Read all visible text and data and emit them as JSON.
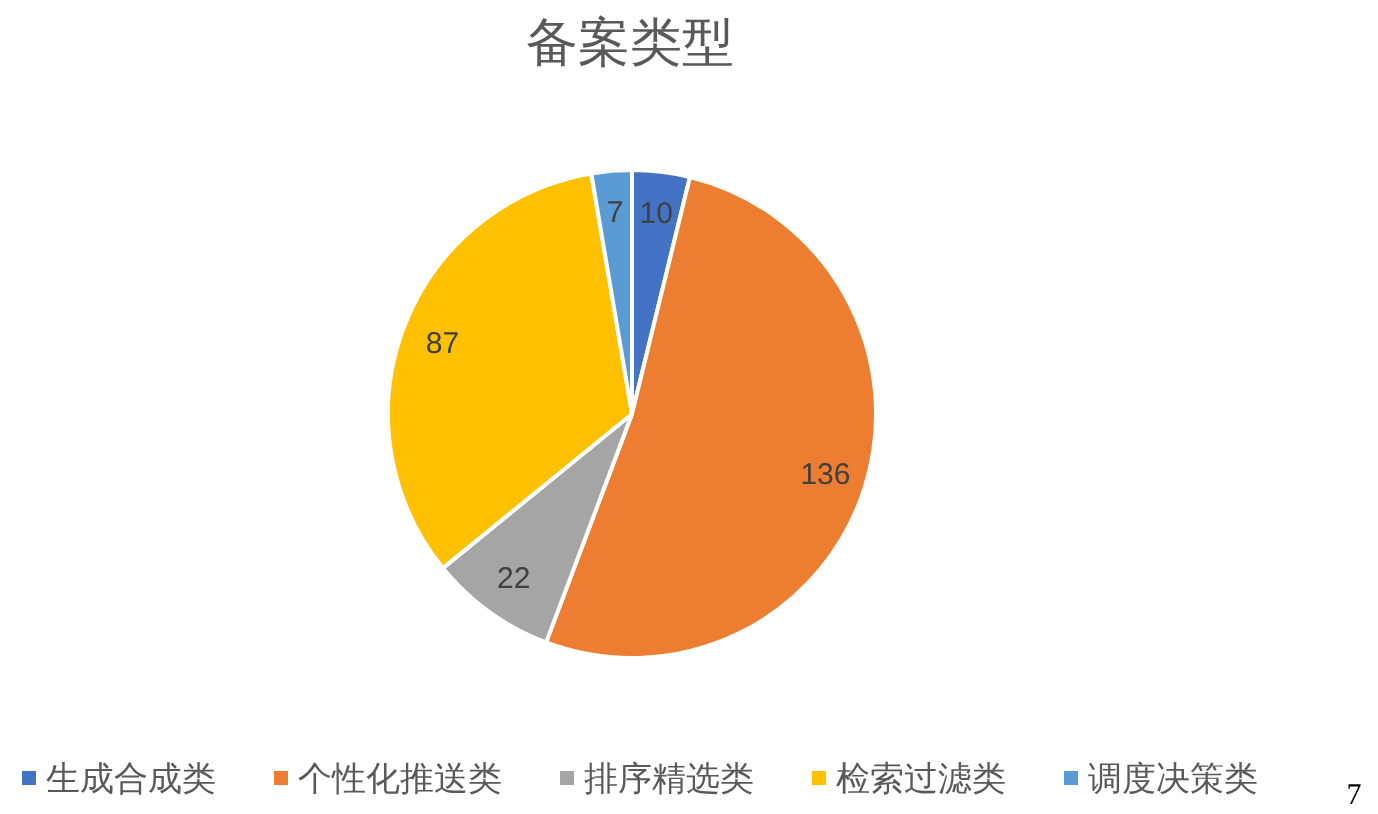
{
  "chart_data": {
    "type": "pie",
    "title": "备案类型",
    "categories": [
      "生成合成类",
      "个性化推送类",
      "排序精选类",
      "检索过滤类",
      "调度决策类"
    ],
    "values": [
      10,
      136,
      22,
      87,
      7
    ],
    "colors": [
      "#4472c4",
      "#ed7d31",
      "#a5a5a5",
      "#ffc000",
      "#5b9bd5"
    ],
    "data_labels": true,
    "legend": "bottom",
    "annotations": [
      "7"
    ]
  }
}
